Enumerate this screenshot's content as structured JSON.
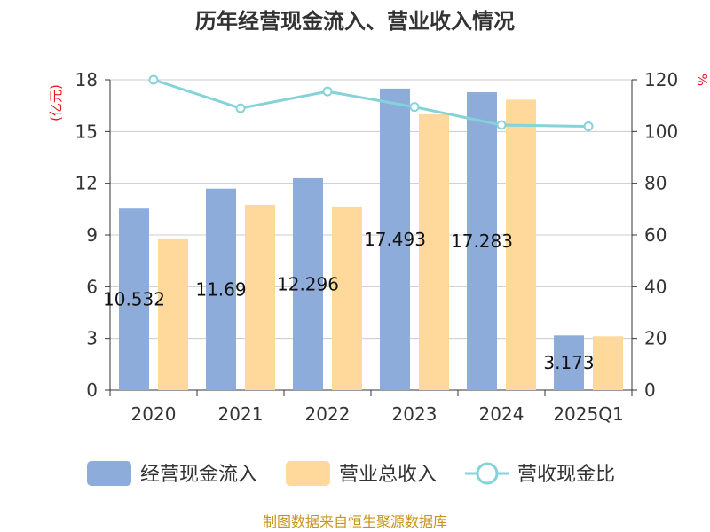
{
  "chart_data": {
    "type": "bar",
    "title": "历年经营现金流入、营业收入情况",
    "categories": [
      "2020",
      "2021",
      "2022",
      "2023",
      "2024",
      "2025Q1"
    ],
    "ylabel_left": "(亿元)",
    "ylabel_right": "%",
    "ylim_left": [
      0,
      18
    ],
    "ylim_right": [
      0,
      120
    ],
    "yticks_left": [
      "0",
      "3",
      "6",
      "9",
      "12",
      "15",
      "18"
    ],
    "yticks_right": [
      "0",
      "20",
      "40",
      "60",
      "80",
      "100",
      "120"
    ],
    "grid": true,
    "legend_position": "bottom",
    "series": [
      {
        "name": "经营现金流入",
        "kind": "bar",
        "axis": "left",
        "color": "#8eacd9",
        "values": [
          10.532,
          11.69,
          12.296,
          17.493,
          17.283,
          3.173
        ],
        "labels": [
          "10.532",
          "11.69",
          "12.296",
          "17.493",
          "17.283",
          "3.173"
        ]
      },
      {
        "name": "营业总收入",
        "kind": "bar",
        "axis": "left",
        "color": "#fed99b",
        "values": [
          8.8,
          10.75,
          10.65,
          16.0,
          16.85,
          3.12
        ]
      },
      {
        "name": "营收现金比",
        "kind": "line",
        "axis": "right",
        "color": "#84d3d9",
        "values": [
          120,
          109,
          115.5,
          109.5,
          102.5,
          102
        ]
      }
    ]
  },
  "footer": {
    "source": "制图数据来自恒生聚源数据库"
  }
}
